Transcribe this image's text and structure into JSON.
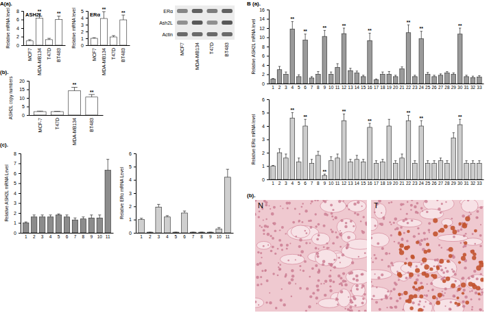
{
  "chart_data": [
    {
      "type": "bar",
      "title": "ASH2L",
      "y_label": "Relative mRNA level",
      "categories": [
        "MCF7",
        "MDA-MB134",
        "T47D",
        "BT483"
      ],
      "values": [
        1.0,
        6.3,
        1.3,
        6.0
      ],
      "errors": [
        0.3,
        1.0,
        0.3,
        0.8
      ],
      "color": "#ffffff",
      "ylim": [
        0,
        8
      ],
      "yticks": [
        0,
        2,
        4,
        6,
        8
      ],
      "annotations": [
        {
          "x": "MDA-MB134",
          "text": "**"
        },
        {
          "x": "BT483",
          "text": "**"
        }
      ]
    },
    {
      "type": "bar",
      "title": "ERα",
      "y_label": "Relative mRNA level",
      "categories": [
        "MCF7",
        "MDA-MB134",
        "T47D",
        "BT483"
      ],
      "values": [
        1.0,
        3.9,
        1.2,
        3.7
      ],
      "errors": [
        0.1,
        1.0,
        0.2,
        0.7
      ],
      "color": "#ffffff",
      "ylim": [
        0,
        5
      ],
      "yticks": [
        0,
        1,
        2,
        3,
        4,
        5
      ],
      "annotations": [
        {
          "x": "MDA-MB134",
          "text": "**"
        },
        {
          "x": "BT483",
          "text": "**"
        }
      ]
    },
    {
      "type": "bar",
      "y_label": "ASH2L copy numbers",
      "categories": [
        "MCF-7",
        "T47D",
        "MDA-MB134",
        "BT483"
      ],
      "values": [
        2.0,
        2.0,
        14.2,
        10.5
      ],
      "errors": [
        0.3,
        0.2,
        2.0,
        1.5
      ],
      "color": "#ffffff",
      "ylim": [
        0,
        20
      ],
      "yticks": [
        0,
        5,
        10,
        15,
        20
      ],
      "annotations": [
        {
          "x": "MDA-MB134",
          "text": "**"
        },
        {
          "x": "BT483",
          "text": "**"
        }
      ]
    },
    {
      "type": "bar",
      "y_label": "Relative ASH2L mRNA Level",
      "categories": [
        "1",
        "2",
        "3",
        "4",
        "5",
        "6",
        "7",
        "8",
        "9",
        "10",
        "11"
      ],
      "values": [
        1.0,
        1.6,
        1.6,
        1.6,
        1.8,
        1.6,
        1.3,
        1.4,
        1.5,
        1.5,
        6.3
      ],
      "errors": [
        0.1,
        0.2,
        0.2,
        0.2,
        0.1,
        0.2,
        0.2,
        0.2,
        0.3,
        0.3,
        1.1
      ],
      "color": "#8c8c8c",
      "ylim": [
        0,
        8
      ],
      "yticks": [
        0,
        1,
        2,
        3,
        4,
        5,
        6,
        7,
        8
      ]
    },
    {
      "type": "bar",
      "y_label": "Relative ERα mRNA Level",
      "categories": [
        "1",
        "2",
        "3",
        "4",
        "5",
        "6",
        "7",
        "8",
        "9",
        "10",
        "11"
      ],
      "values": [
        1.0,
        0.05,
        1.95,
        1.2,
        0.05,
        1.5,
        0.05,
        0.05,
        0.05,
        0.3,
        4.2
      ],
      "errors": [
        0.1,
        0.0,
        0.2,
        0.1,
        0.0,
        0.15,
        0.0,
        0.0,
        0.0,
        0.1,
        0.6
      ],
      "color": "#cfcfcf",
      "ylim": [
        0,
        6
      ],
      "yticks": [
        0,
        1,
        2,
        3,
        4,
        5,
        6
      ]
    },
    {
      "type": "bar",
      "y_label": "Relative ASH2L mRNA level",
      "categories": [
        "1",
        "2",
        "3",
        "4",
        "5",
        "6",
        "7",
        "8",
        "9",
        "10",
        "11",
        "12",
        "13",
        "14",
        "15",
        "16",
        "17",
        "18",
        "19",
        "20",
        "21",
        "22",
        "23",
        "24",
        "25",
        "26",
        "27",
        "28",
        "29",
        "30",
        "31",
        "32",
        "33"
      ],
      "values": [
        1.0,
        3.0,
        2.0,
        11.8,
        1.5,
        9.4,
        1.2,
        2.0,
        10.2,
        2.0,
        3.5,
        10.8,
        2.8,
        2.3,
        1.5,
        9.3,
        0.8,
        2.0,
        2.0,
        1.5,
        3.2,
        11.0,
        1.5,
        9.7,
        2.0,
        1.5,
        1.8,
        2.3,
        2.0,
        10.7,
        1.5,
        1.3,
        1.4
      ],
      "errors": [
        0.1,
        0.7,
        0.5,
        1.6,
        0.4,
        1.3,
        0.3,
        0.6,
        1.3,
        0.5,
        0.8,
        1.2,
        0.5,
        0.4,
        0.3,
        1.6,
        0.2,
        0.5,
        0.6,
        0.3,
        0.4,
        1.7,
        0.3,
        1.6,
        0.4,
        0.3,
        0.3,
        0.3,
        0.3,
        1.3,
        0.3,
        0.3,
        0.3
      ],
      "color": "#9a9a9a",
      "ylim": [
        0,
        16
      ],
      "yticks": [
        0,
        2,
        4,
        6,
        8,
        10,
        12,
        14,
        16
      ],
      "annotations": [
        {
          "x": "4",
          "text": "**"
        },
        {
          "x": "6",
          "text": "**"
        },
        {
          "x": "9",
          "text": "**"
        },
        {
          "x": "12",
          "text": "**"
        },
        {
          "x": "16",
          "text": "**"
        },
        {
          "x": "22",
          "text": "**"
        },
        {
          "x": "24",
          "text": "**"
        },
        {
          "x": "30",
          "text": "**"
        }
      ]
    },
    {
      "type": "bar",
      "y_label": "Relative ERα mRNA level",
      "categories": [
        "1",
        "2",
        "3",
        "4",
        "5",
        "6",
        "7",
        "8",
        "9",
        "10",
        "11",
        "12",
        "13",
        "14",
        "15",
        "16",
        "17",
        "18",
        "19",
        "20",
        "21",
        "22",
        "23",
        "24",
        "25",
        "26",
        "27",
        "28",
        "29",
        "30",
        "31",
        "32",
        "33"
      ],
      "values": [
        1.0,
        2.0,
        1.6,
        4.6,
        1.3,
        4.0,
        1.2,
        1.8,
        0.3,
        1.4,
        1.6,
        4.4,
        1.3,
        1.5,
        1.3,
        3.9,
        1.2,
        1.3,
        4.0,
        1.2,
        1.6,
        4.4,
        1.2,
        4.0,
        1.2,
        1.2,
        1.4,
        1.2,
        3.1,
        4.1,
        1.2,
        1.2,
        1.2
      ],
      "errors": [
        0.05,
        0.3,
        0.3,
        0.4,
        0.3,
        0.5,
        0.3,
        0.3,
        0.1,
        0.3,
        0.3,
        0.5,
        0.2,
        0.3,
        0.2,
        0.3,
        0.2,
        0.2,
        0.5,
        0.2,
        0.3,
        0.4,
        0.2,
        0.4,
        0.2,
        0.2,
        0.2,
        0.2,
        0.4,
        0.4,
        0.2,
        0.2,
        0.2
      ],
      "color": "#cdcdcd",
      "ylim": [
        0,
        6
      ],
      "yticks": [
        0,
        1,
        2,
        3,
        4,
        5,
        6
      ],
      "annotations": [
        {
          "x": "4",
          "text": "**"
        },
        {
          "x": "6",
          "text": "**"
        },
        {
          "x": "9",
          "text": "**"
        },
        {
          "x": "12",
          "text": "**"
        },
        {
          "x": "16",
          "text": "**"
        },
        {
          "x": "22",
          "text": "**"
        },
        {
          "x": "24",
          "text": "**"
        },
        {
          "x": "30",
          "text": "**"
        }
      ]
    }
  ],
  "figure": {
    "panel_labels": [
      "A(a).",
      "(b).",
      "(c).",
      "B (a).",
      "(b)."
    ],
    "blot": {
      "rows": [
        "ERα",
        "Ash2L",
        "Actin"
      ],
      "lanes": [
        "MCF7",
        "MDA-MB134",
        "T47D",
        "BT483"
      ]
    },
    "ihc": {
      "panels": [
        "N",
        "T"
      ]
    }
  }
}
